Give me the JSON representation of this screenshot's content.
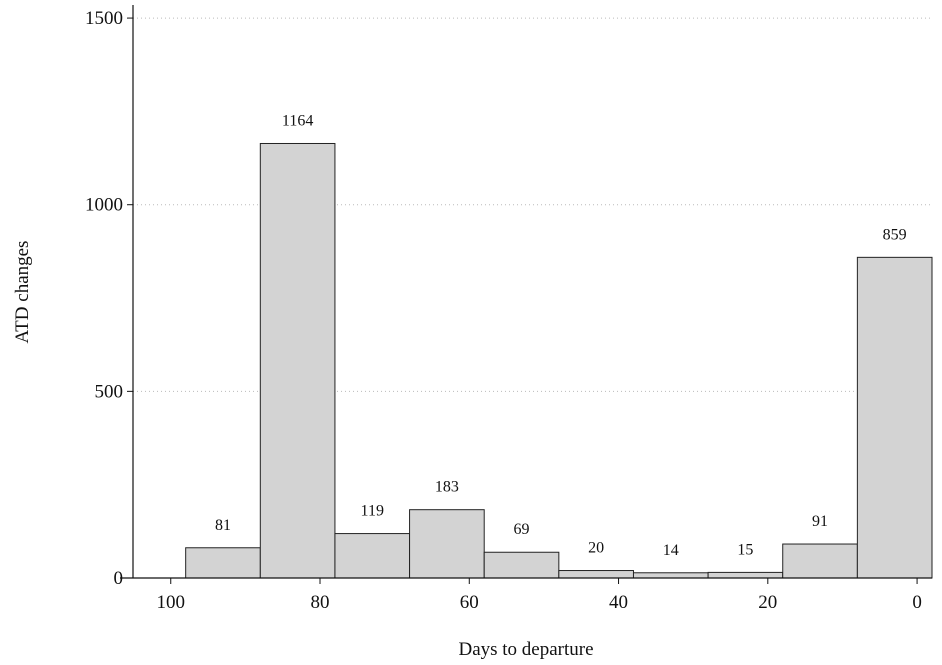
{
  "chart_data": {
    "type": "histogram",
    "x_label": "Days to departure",
    "y_label": "ATD changes",
    "bins": [
      98,
      88,
      78,
      68,
      58,
      48,
      38,
      28,
      18,
      8,
      -2
    ],
    "counts": [
      81,
      1164,
      119,
      183,
      69,
      20,
      14,
      15,
      91,
      859
    ],
    "color": "#d3d3d3",
    "xlim": [
      106.8,
      -2
    ],
    "xticks": [
      100,
      80,
      60,
      40,
      20,
      0
    ],
    "ylim": [
      0,
      1535
    ],
    "yticks": [
      0,
      500,
      1000,
      1500
    ],
    "grid": true
  }
}
